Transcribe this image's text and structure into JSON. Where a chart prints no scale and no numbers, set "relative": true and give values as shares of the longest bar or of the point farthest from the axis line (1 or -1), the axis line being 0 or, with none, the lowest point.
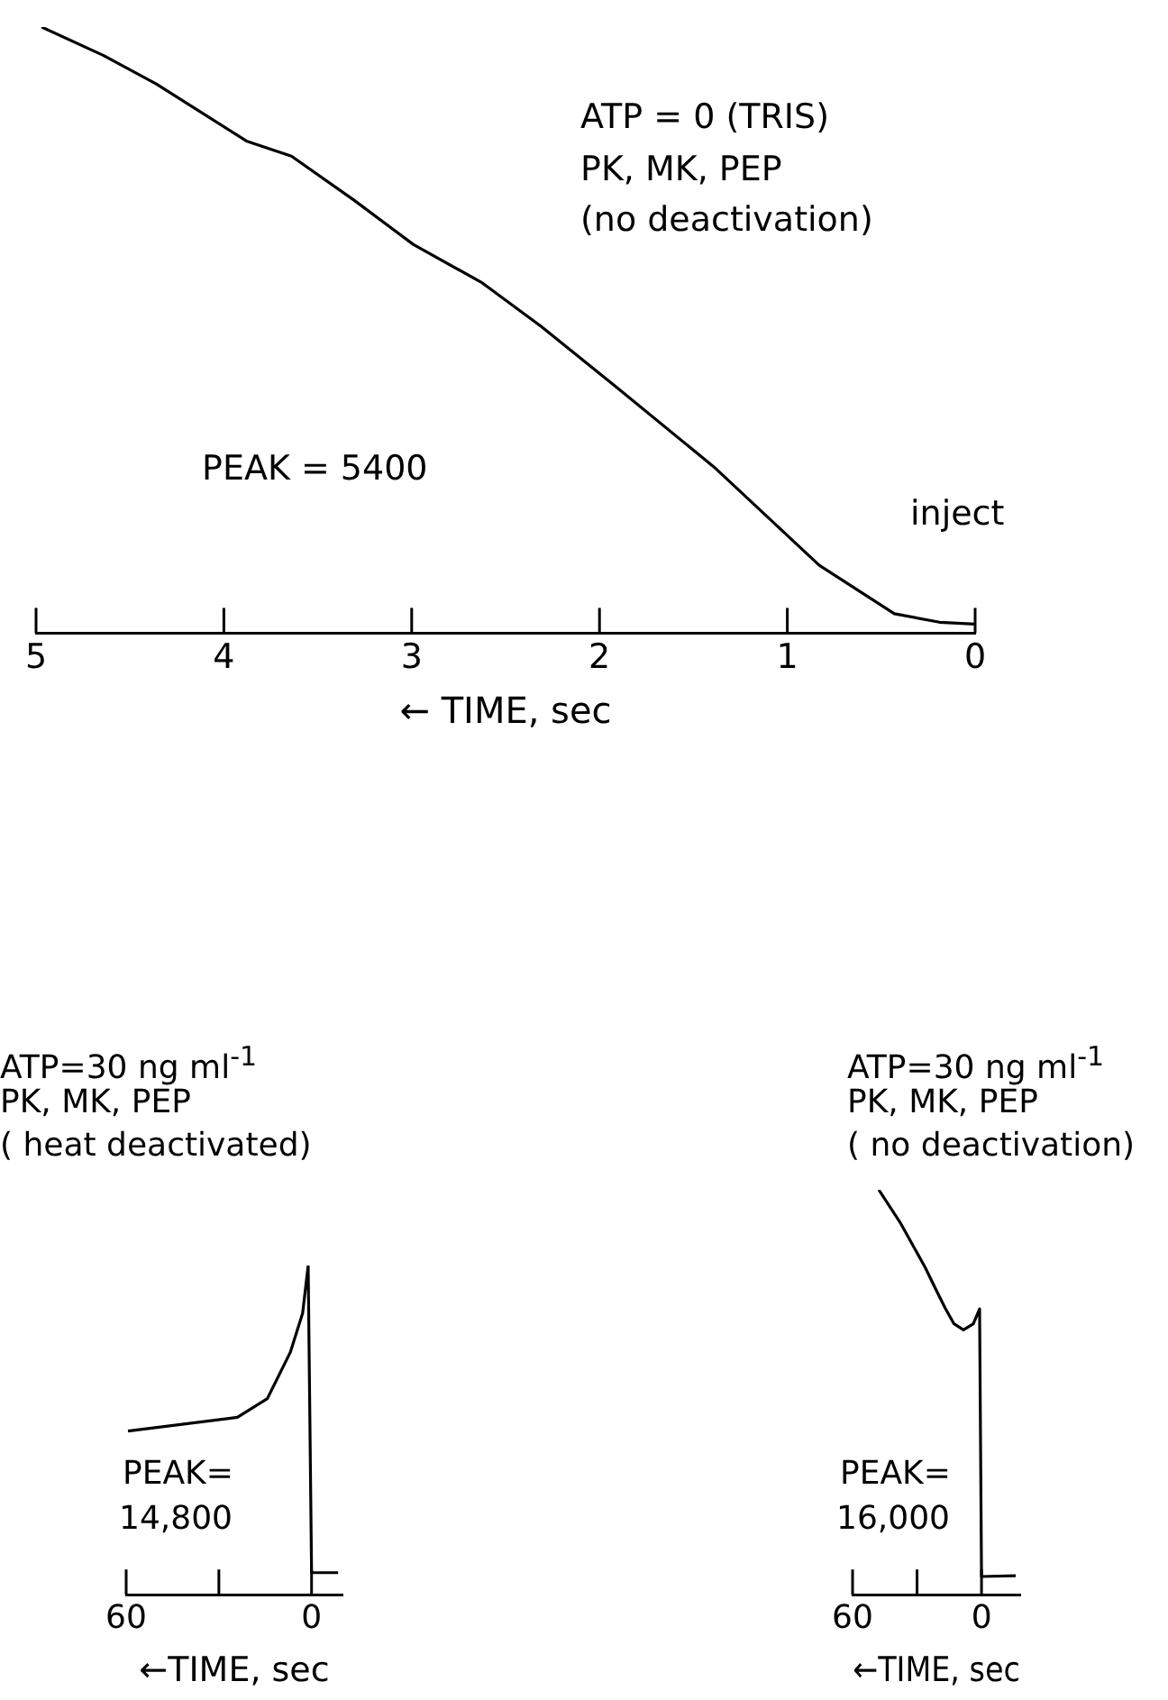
{
  "chart_data": [
    {
      "type": "line",
      "relative": true,
      "xlabel": "← TIME, sec",
      "xlim": [
        5,
        0
      ],
      "xticks": [
        5,
        4,
        3,
        2,
        1,
        0
      ],
      "grid": false,
      "legend": false,
      "marker": "none",
      "line_style": "solid",
      "annotations": [
        "ATP = 0 (TRIS)",
        "PK, MK, PEP",
        "(no deactivation)",
        "PEAK = 5400",
        "inject"
      ],
      "series": [
        {
          "color": "#000000",
          "x": [
            4.97,
            4.64,
            4.36,
            3.88,
            3.64,
            3.31,
            2.99,
            2.63,
            2.31,
            1.91,
            1.39,
            0.83,
            0.43,
            0.19,
            0
          ],
          "values": [
            1.0,
            0.953,
            0.906,
            0.812,
            0.787,
            0.715,
            0.641,
            0.579,
            0.506,
            0.406,
            0.274,
            0.112,
            0.032,
            0.018,
            0.015
          ]
        }
      ]
    },
    {
      "type": "line",
      "relative": true,
      "xlabel": "←TIME, sec",
      "xlim": [
        60,
        -10
      ],
      "xticks": [
        60,
        {
          "value": 30,
          "label": null
        },
        0
      ],
      "grid": false,
      "legend": false,
      "marker": "none",
      "line_style": "solid",
      "annotations": [
        "ATP=30 ng ml$^{-1}$",
        "PK, MK, PEP",
        "( heat deactivated)",
        "PEAK=",
        "14,800"
      ],
      "series": [
        {
          "color": "#000000",
          "x": [
            59.4,
            24,
            14.3,
            6.9,
            2.9,
            1.1,
            0,
            -8.6
          ],
          "values": [
            0.497,
            0.539,
            0.596,
            0.736,
            0.855,
            1.0,
            0.067,
            0.067
          ]
        }
      ]
    },
    {
      "type": "line",
      "relative": true,
      "xlabel": "←TIME, sec",
      "xlim": [
        60,
        -18
      ],
      "xticks": [
        60,
        {
          "value": 30,
          "label": null
        },
        0
      ],
      "grid": false,
      "legend": false,
      "marker": "none",
      "line_style": "solid",
      "annotations": [
        "ATP=30 ng ml$^{-1}$",
        "PK, MK, PEP",
        "( no deactivation)",
        "PEAK=",
        "16,000"
      ],
      "series": [
        {
          "color": "#000000",
          "x": [
            47.8,
            37.5,
            26.3,
            21.6,
            16.9,
            12.8,
            8.4,
            3.8,
            0.9,
            0,
            -15.9
          ],
          "values": [
            1.0,
            0.916,
            0.809,
            0.758,
            0.708,
            0.669,
            0.654,
            0.669,
            0.706,
            0.045,
            0.047
          ]
        }
      ]
    }
  ]
}
